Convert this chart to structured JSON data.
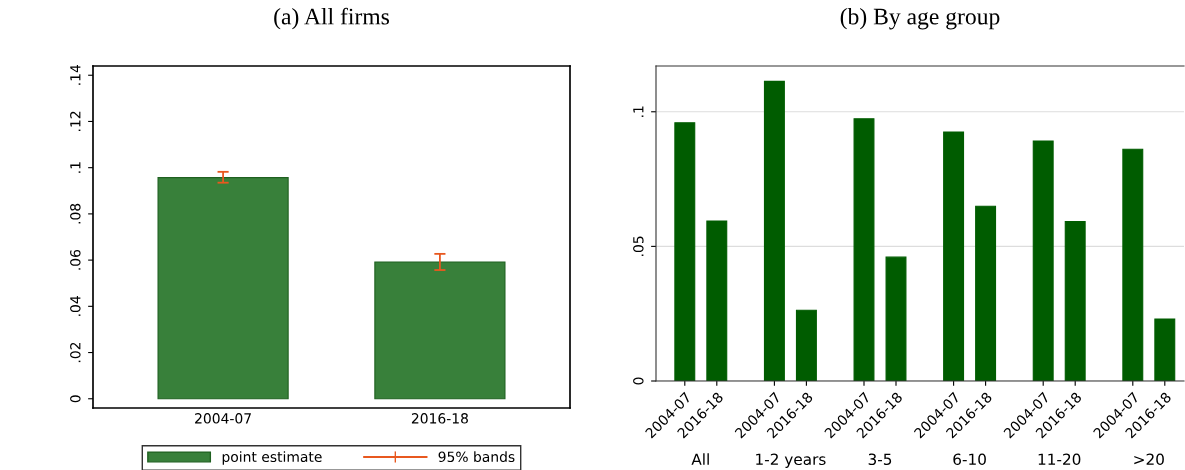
{
  "chart_data": [
    {
      "type": "bar",
      "title": "(a) All firms",
      "categories": [
        "2004-07",
        "2016-18"
      ],
      "series": [
        {
          "name": "point estimate",
          "color": "#38803a",
          "values": [
            0.0957,
            0.0592
          ],
          "errors": [
            [
              0.0935,
              0.0982
            ],
            [
              0.0557,
              0.0627
            ]
          ]
        }
      ],
      "annotations": [
        "95% bands"
      ],
      "ylim": [
        -0.004,
        0.144
      ],
      "yticks": [
        {
          "value": 0,
          "label": "0"
        },
        {
          "value": 0.02,
          "label": ".02"
        },
        {
          "value": 0.04,
          "label": ".04"
        },
        {
          "value": 0.06,
          "label": ".06"
        },
        {
          "value": 0.08,
          "label": ".08"
        },
        {
          "value": 0.1,
          "label": ".1"
        },
        {
          "value": 0.12,
          "label": ".12"
        },
        {
          "value": 0.14,
          "label": ".14"
        }
      ],
      "grid": false,
      "legend": "bottom"
    },
    {
      "type": "bar",
      "title": "(b) By age group",
      "categories": [
        "2004-07",
        "2016-18",
        "2004-07",
        "2016-18",
        "2004-07",
        "2016-18",
        "2004-07",
        "2016-18",
        "2004-07",
        "2016-18",
        "2004-07",
        "2016-18"
      ],
      "values": [
        0.0959,
        0.0594,
        0.1113,
        0.0263,
        0.0974,
        0.046,
        0.0925,
        0.0649,
        0.0891,
        0.0592,
        0.0861,
        0.023
      ],
      "color": "#005c00",
      "annotations": [
        "All",
        "1-2 years",
        "3-5",
        "6-10",
        "11-20",
        ">20"
      ],
      "ylim": [
        0,
        0.117
      ],
      "yticks": [
        {
          "value": 0,
          "label": "0"
        },
        {
          "value": 0.05,
          "label": ".05"
        },
        {
          "value": 0.1,
          "label": ".1"
        }
      ],
      "grid": "y"
    }
  ]
}
